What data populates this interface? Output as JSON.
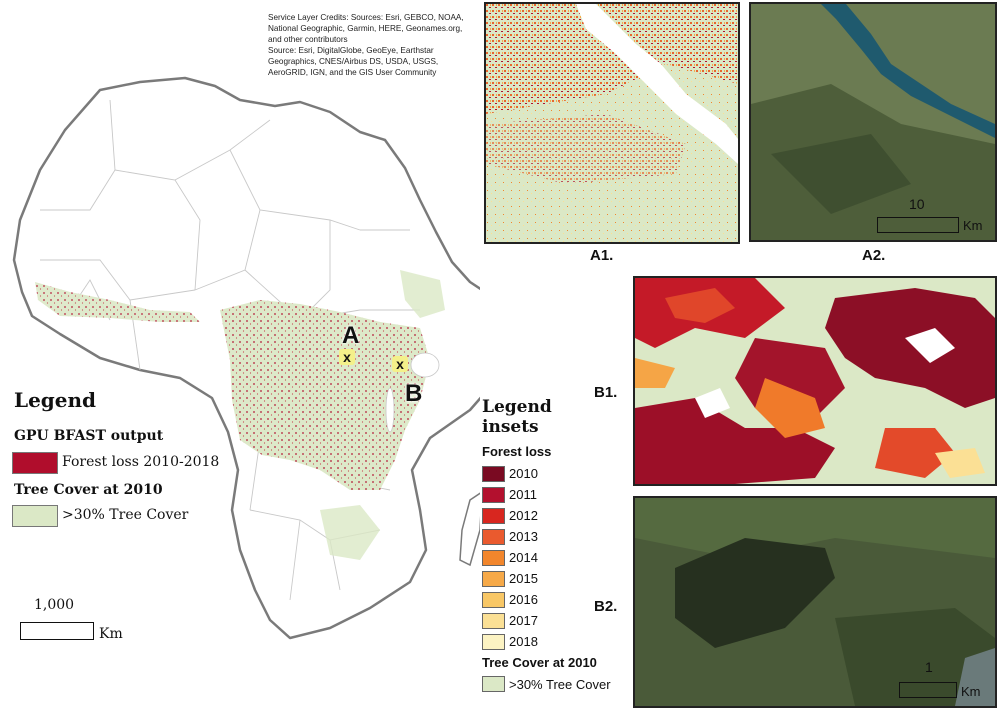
{
  "credits": "Service Layer Credits: Sources: Esri, GEBCO, NOAA, National Geographic, Garmin, HERE, Geonames.org, and other contributors\nSource: Esri, DigitalGlobe, GeoEye, Earthstar Geographics, CNES/Airbus DS, USDA, USGS, AeroGRID, IGN, and the GIS User Community",
  "map": {
    "marker_a_letter": "A",
    "marker_b_letter": "B",
    "marker_symbol": "x"
  },
  "legend": {
    "title": "Legend",
    "section1": "GPU BFAST output",
    "item1_label": "Forest loss 2010-2018",
    "item1_color": "#b00d2c",
    "section2": "Tree Cover at 2010",
    "item2_label": ">30% Tree Cover",
    "item2_color": "#dbe8c6"
  },
  "scalebar_main": {
    "value": "1,000",
    "unit": "Km"
  },
  "insets": {
    "a1_label": "A1.",
    "a2_label": "A2.",
    "b1_label": "B1.",
    "b2_label": "B2.",
    "a2_scale_value": "10",
    "a2_scale_unit": "Km",
    "b2_scale_value": "1",
    "b2_scale_unit": "Km"
  },
  "inset_legend": {
    "title_line1": "Legend",
    "title_line2": "insets",
    "forest_loss_label": "Forest loss",
    "years": [
      {
        "label": "2010",
        "color": "#7a0a22"
      },
      {
        "label": "2011",
        "color": "#b3102e"
      },
      {
        "label": "2012",
        "color": "#d8261f"
      },
      {
        "label": "2013",
        "color": "#ea5a2e"
      },
      {
        "label": "2014",
        "color": "#f2862c"
      },
      {
        "label": "2015",
        "color": "#f6a948"
      },
      {
        "label": "2016",
        "color": "#f8c766"
      },
      {
        "label": "2017",
        "color": "#fbe095"
      },
      {
        "label": "2018",
        "color": "#fcf3c3"
      }
    ],
    "tree_cover_label": "Tree Cover at 2010",
    "tree_cover_item": ">30% Tree Cover",
    "tree_cover_color": "#dbe8c6"
  }
}
